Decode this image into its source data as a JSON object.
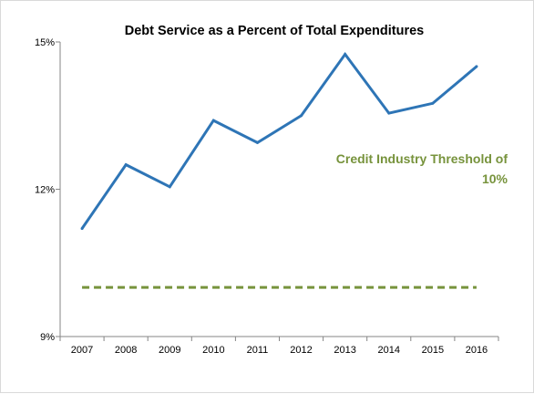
{
  "chart_data": {
    "type": "line",
    "title": "Debt Service as a Percent of Total Expenditures",
    "xlabel": "",
    "ylabel": "",
    "categories": [
      "2007",
      "2008",
      "2009",
      "2010",
      "2011",
      "2012",
      "2013",
      "2014",
      "2015",
      "2016"
    ],
    "series": [
      {
        "values": [
          11.2,
          12.5,
          12.05,
          13.4,
          12.95,
          13.5,
          14.75,
          13.55,
          13.75,
          14.5
        ],
        "color": "#2e75b6"
      }
    ],
    "threshold": {
      "value": 10,
      "color": "#77933c",
      "label_line1": "Credit Industry Threshold of",
      "label_line2": "10%"
    },
    "ylim": [
      9,
      15
    ],
    "yticks": [
      9,
      12,
      15
    ],
    "ytick_labels": [
      "9%",
      "12%",
      "15%"
    ],
    "grid": false,
    "legend": "none"
  }
}
